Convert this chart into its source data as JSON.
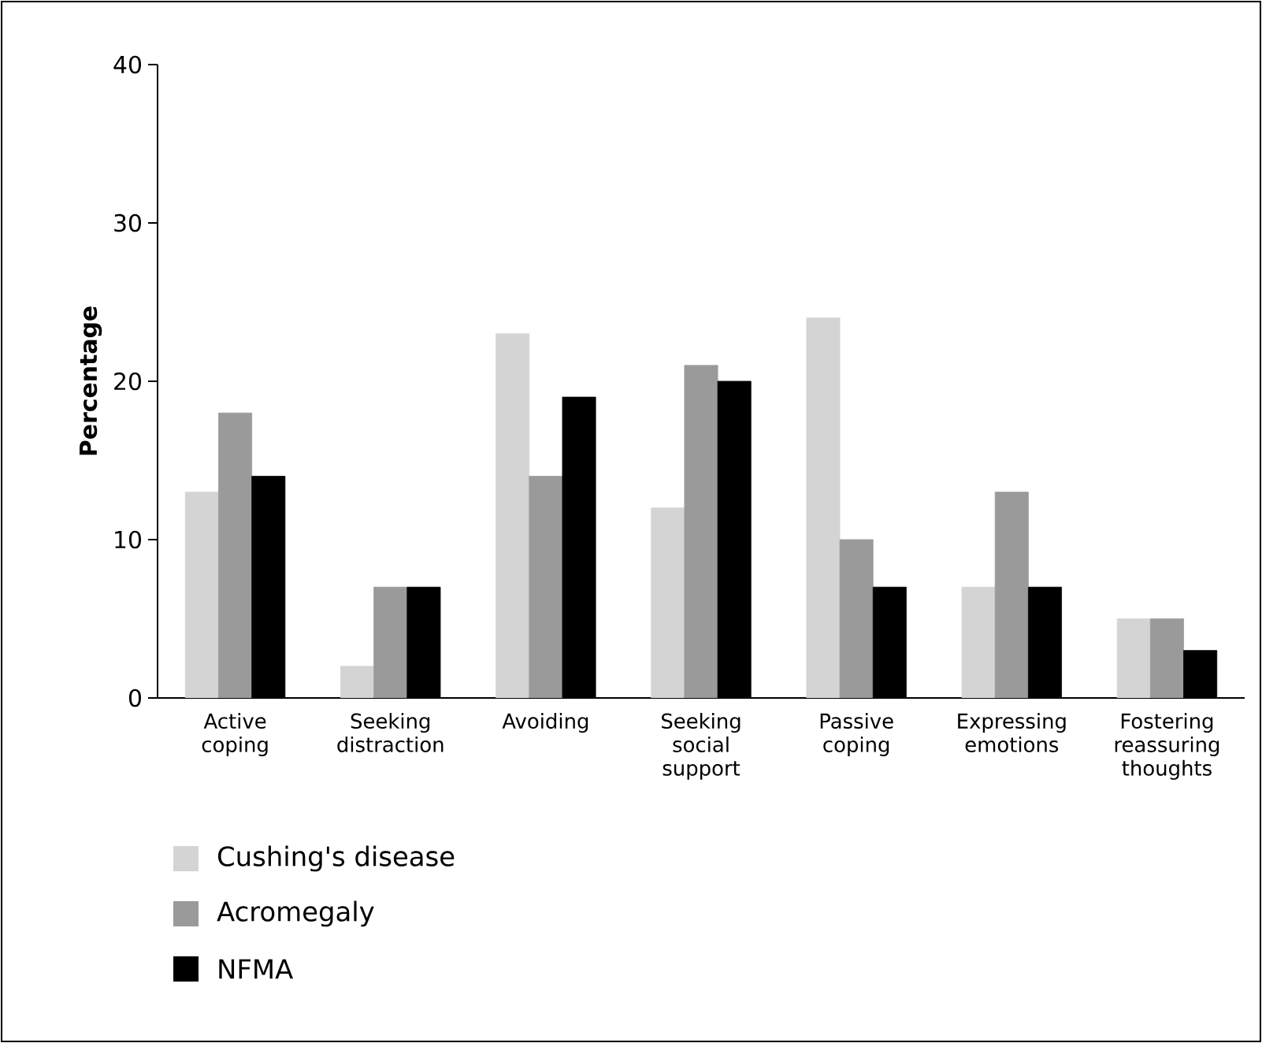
{
  "chart_data": {
    "type": "bar",
    "ylabel": "Percentage",
    "categories": [
      "Active coping",
      "Seeking distraction",
      "Avoiding",
      "Seeking social support",
      "Passive coping",
      "Expressing emotions",
      "Fostering reassuring thoughts"
    ],
    "series": [
      {
        "name": "Cushing's disease",
        "color": "#d4d4d4",
        "values": [
          13,
          2,
          23,
          12,
          24,
          7,
          5
        ]
      },
      {
        "name": "Acromegaly",
        "color": "#9a9a9a",
        "values": [
          18,
          7,
          14,
          21,
          10,
          13,
          5
        ]
      },
      {
        "name": "NFMA",
        "color": "#000000",
        "values": [
          14,
          7,
          19,
          20,
          7,
          7,
          3
        ]
      }
    ],
    "ylim": [
      0,
      40
    ],
    "yticks": [
      0,
      10,
      20,
      30,
      40
    ],
    "grid": false,
    "legend": "bottom left"
  }
}
